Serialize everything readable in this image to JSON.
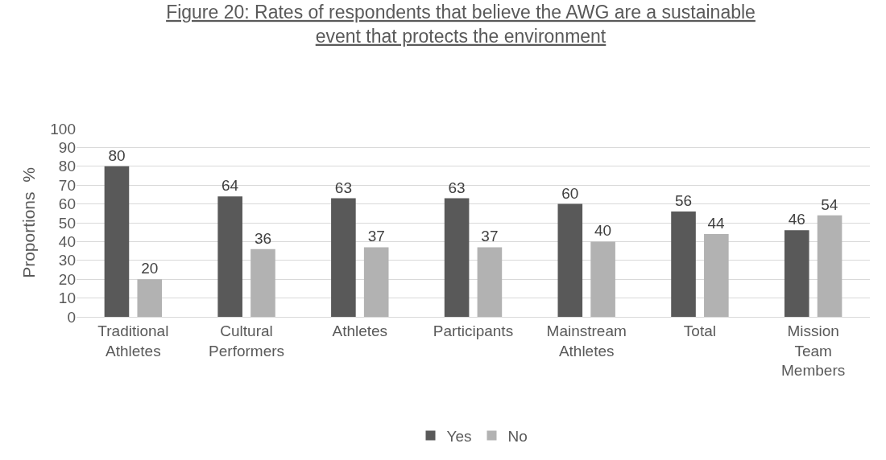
{
  "chart_data": {
    "type": "bar",
    "title": "Figure 20: Rates of respondents that believe the AWG are a sustainable\nevent that protects the environment",
    "ylabel": "Proportions  %",
    "categories": [
      "Traditional Athletes",
      "Cultural Performers",
      "Athletes",
      "Participants",
      "Mainstream Athletes",
      "Total",
      "Mission Team Members"
    ],
    "series": [
      {
        "name": "Yes",
        "color": "#595959",
        "values": [
          80,
          64,
          63,
          63,
          60,
          56,
          46
        ]
      },
      {
        "name": "No",
        "color": "#b2b2b2",
        "values": [
          20,
          36,
          37,
          37,
          40,
          44,
          54
        ]
      }
    ],
    "ylim": [
      0,
      100
    ],
    "yticks": [
      0,
      10,
      20,
      30,
      40,
      50,
      60,
      70,
      80,
      90,
      100
    ],
    "grid": "y",
    "legend": "bottom",
    "data_labels": true
  }
}
